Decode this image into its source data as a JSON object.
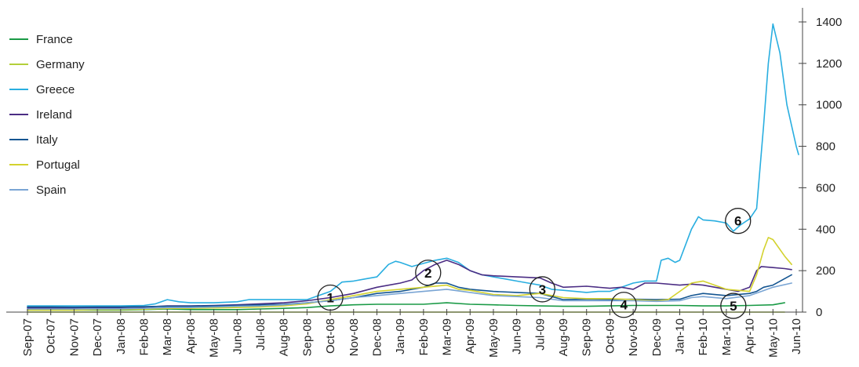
{
  "chart_data": {
    "type": "line",
    "title": "",
    "xlabel": "",
    "ylabel": "",
    "ylim": [
      0,
      1450
    ],
    "y_ticks": [
      0,
      200,
      400,
      600,
      800,
      1000,
      1200,
      1400
    ],
    "y_axis_side": "right",
    "grid": false,
    "legend_position": "top-left",
    "categories": [
      "Sep-07",
      "Oct-07",
      "Nov-07",
      "Dec-07",
      "Jan-08",
      "Feb-08",
      "Mar-08",
      "Apr-08",
      "May-08",
      "Jun-08",
      "Jul-08",
      "Aug-08",
      "Sep-08",
      "Oct-08",
      "Nov-08",
      "Dec-08",
      "Jan-09",
      "Feb-09",
      "Mar-09",
      "Apr-09",
      "May-09",
      "Jun-09",
      "Jul-09",
      "Aug-09",
      "Sep-09",
      "Oct-09",
      "Nov-09",
      "Dec-09",
      "Jan-10",
      "Feb-10",
      "Mar-10",
      "Apr-10",
      "May-10",
      "Jun-10"
    ],
    "series": [
      {
        "name": "France",
        "color": "#1a9a46",
        "points": [
          [
            0,
            10
          ],
          [
            1,
            10
          ],
          [
            2,
            10
          ],
          [
            3,
            10
          ],
          [
            4,
            10
          ],
          [
            5,
            12
          ],
          [
            6,
            15
          ],
          [
            7,
            12
          ],
          [
            8,
            12
          ],
          [
            9,
            12
          ],
          [
            10,
            15
          ],
          [
            11,
            18
          ],
          [
            12,
            22
          ],
          [
            13,
            30
          ],
          [
            14,
            35
          ],
          [
            15,
            38
          ],
          [
            16,
            38
          ],
          [
            17,
            38
          ],
          [
            18,
            45
          ],
          [
            19,
            38
          ],
          [
            20,
            35
          ],
          [
            21,
            32
          ],
          [
            22,
            30
          ],
          [
            23,
            28
          ],
          [
            24,
            28
          ],
          [
            25,
            30
          ],
          [
            26,
            32
          ],
          [
            27,
            32
          ],
          [
            28,
            32
          ],
          [
            29,
            30
          ],
          [
            30,
            30
          ],
          [
            31,
            32
          ],
          [
            32,
            35
          ],
          [
            32.5,
            45
          ]
        ]
      },
      {
        "name": "Germany",
        "color": "#b3cf3a",
        "points": [
          [
            0,
            0
          ],
          [
            1,
            0
          ],
          [
            2,
            0
          ],
          [
            3,
            0
          ],
          [
            4,
            0
          ],
          [
            5,
            0
          ],
          [
            6,
            0
          ],
          [
            7,
            0
          ],
          [
            8,
            0
          ],
          [
            9,
            0
          ],
          [
            10,
            0
          ],
          [
            11,
            0
          ],
          [
            12,
            0
          ],
          [
            13,
            0
          ],
          [
            14,
            0
          ],
          [
            15,
            0
          ],
          [
            16,
            0
          ],
          [
            17,
            0
          ],
          [
            18,
            0
          ],
          [
            19,
            0
          ],
          [
            20,
            0
          ],
          [
            21,
            0
          ],
          [
            22,
            0
          ],
          [
            23,
            0
          ],
          [
            24,
            0
          ],
          [
            25,
            0
          ],
          [
            26,
            0
          ],
          [
            27,
            0
          ],
          [
            28,
            0
          ],
          [
            29,
            0
          ],
          [
            30,
            0
          ],
          [
            31,
            0
          ],
          [
            32,
            0
          ],
          [
            32.5,
            0
          ]
        ]
      },
      {
        "name": "Greece",
        "color": "#29aee0",
        "points": [
          [
            0,
            30
          ],
          [
            1,
            30
          ],
          [
            2,
            30
          ],
          [
            3,
            30
          ],
          [
            4,
            30
          ],
          [
            5,
            32
          ],
          [
            5.5,
            40
          ],
          [
            6,
            60
          ],
          [
            6.5,
            50
          ],
          [
            7,
            45
          ],
          [
            8,
            45
          ],
          [
            9,
            50
          ],
          [
            9.5,
            60
          ],
          [
            10,
            60
          ],
          [
            11,
            60
          ],
          [
            12,
            60
          ],
          [
            12.5,
            80
          ],
          [
            13,
            100
          ],
          [
            13.5,
            145
          ],
          [
            14,
            150
          ],
          [
            14.5,
            160
          ],
          [
            15,
            170
          ],
          [
            15.5,
            230
          ],
          [
            15.8,
            245
          ],
          [
            16,
            240
          ],
          [
            16.5,
            220
          ],
          [
            17,
            235
          ],
          [
            17.5,
            250
          ],
          [
            18,
            260
          ],
          [
            18.5,
            240
          ],
          [
            19,
            200
          ],
          [
            19.5,
            180
          ],
          [
            20,
            170
          ],
          [
            20.5,
            160
          ],
          [
            21,
            150
          ],
          [
            21.5,
            140
          ],
          [
            22,
            130
          ],
          [
            22.5,
            110
          ],
          [
            23,
            105
          ],
          [
            23.5,
            100
          ],
          [
            24,
            95
          ],
          [
            24.5,
            100
          ],
          [
            25,
            100
          ],
          [
            25.5,
            120
          ],
          [
            26,
            140
          ],
          [
            26.5,
            150
          ],
          [
            27,
            150
          ],
          [
            27.2,
            250
          ],
          [
            27.5,
            260
          ],
          [
            27.8,
            240
          ],
          [
            28,
            250
          ],
          [
            28.5,
            400
          ],
          [
            28.8,
            460
          ],
          [
            29,
            445
          ],
          [
            29.5,
            440
          ],
          [
            30,
            430
          ],
          [
            30.3,
            390
          ],
          [
            30.6,
            420
          ],
          [
            31,
            450
          ],
          [
            31.3,
            500
          ],
          [
            31.6,
            900
          ],
          [
            31.8,
            1200
          ],
          [
            32,
            1390
          ],
          [
            32.3,
            1250
          ],
          [
            32.6,
            1000
          ],
          [
            33,
            800
          ],
          [
            33.1,
            760
          ]
        ]
      },
      {
        "name": "Ireland",
        "color": "#4b2d84",
        "points": [
          [
            0,
            20
          ],
          [
            1,
            20
          ],
          [
            2,
            20
          ],
          [
            3,
            22
          ],
          [
            4,
            22
          ],
          [
            5,
            24
          ],
          [
            6,
            30
          ],
          [
            7,
            30
          ],
          [
            8,
            32
          ],
          [
            9,
            35
          ],
          [
            10,
            40
          ],
          [
            11,
            45
          ],
          [
            12,
            55
          ],
          [
            13,
            70
          ],
          [
            14,
            90
          ],
          [
            15,
            120
          ],
          [
            16,
            140
          ],
          [
            16.5,
            155
          ],
          [
            17,
            200
          ],
          [
            17.5,
            230
          ],
          [
            18,
            250
          ],
          [
            18.5,
            230
          ],
          [
            19,
            200
          ],
          [
            19.5,
            180
          ],
          [
            20,
            175
          ],
          [
            21,
            170
          ],
          [
            22,
            165
          ],
          [
            22.5,
            140
          ],
          [
            23,
            120
          ],
          [
            24,
            125
          ],
          [
            25,
            115
          ],
          [
            25.5,
            120
          ],
          [
            26,
            110
          ],
          [
            26.5,
            140
          ],
          [
            27,
            140
          ],
          [
            28,
            130
          ],
          [
            28.5,
            135
          ],
          [
            29,
            130
          ],
          [
            30,
            110
          ],
          [
            30.5,
            100
          ],
          [
            31,
            120
          ],
          [
            31.3,
            200
          ],
          [
            31.5,
            220
          ],
          [
            32,
            215
          ],
          [
            32.5,
            210
          ],
          [
            32.8,
            205
          ]
        ]
      },
      {
        "name": "Italy",
        "color": "#145591",
        "points": [
          [
            0,
            25
          ],
          [
            1,
            25
          ],
          [
            2,
            24
          ],
          [
            3,
            25
          ],
          [
            4,
            25
          ],
          [
            5,
            26
          ],
          [
            6,
            28
          ],
          [
            7,
            28
          ],
          [
            8,
            30
          ],
          [
            9,
            32
          ],
          [
            10,
            35
          ],
          [
            11,
            38
          ],
          [
            12,
            45
          ],
          [
            13,
            55
          ],
          [
            14,
            70
          ],
          [
            15,
            90
          ],
          [
            16,
            100
          ],
          [
            17,
            120
          ],
          [
            17.5,
            140
          ],
          [
            18,
            140
          ],
          [
            18.5,
            120
          ],
          [
            19,
            110
          ],
          [
            20,
            100
          ],
          [
            21,
            95
          ],
          [
            22,
            90
          ],
          [
            23,
            60
          ],
          [
            24,
            62
          ],
          [
            25,
            60
          ],
          [
            26,
            62
          ],
          [
            27,
            60
          ],
          [
            28,
            62
          ],
          [
            28.5,
            80
          ],
          [
            29,
            90
          ],
          [
            30,
            80
          ],
          [
            31,
            90
          ],
          [
            31.3,
            100
          ],
          [
            31.6,
            120
          ],
          [
            32,
            130
          ],
          [
            32.8,
            180
          ]
        ]
      },
      {
        "name": "Portugal",
        "color": "#d3d22e",
        "points": [
          [
            0,
            10
          ],
          [
            1,
            10
          ],
          [
            2,
            10
          ],
          [
            3,
            12
          ],
          [
            4,
            12
          ],
          [
            5,
            14
          ],
          [
            6,
            18
          ],
          [
            7,
            18
          ],
          [
            8,
            20
          ],
          [
            9,
            22
          ],
          [
            10,
            25
          ],
          [
            11,
            30
          ],
          [
            12,
            40
          ],
          [
            13,
            60
          ],
          [
            14,
            80
          ],
          [
            15,
            100
          ],
          [
            16,
            110
          ],
          [
            17,
            120
          ],
          [
            18,
            130
          ],
          [
            18.5,
            110
          ],
          [
            19,
            105
          ],
          [
            20,
            85
          ],
          [
            21,
            80
          ],
          [
            22,
            90
          ],
          [
            23,
            70
          ],
          [
            24,
            65
          ],
          [
            25,
            65
          ],
          [
            26,
            60
          ],
          [
            27,
            55
          ],
          [
            27.5,
            60
          ],
          [
            28,
            100
          ],
          [
            28.5,
            140
          ],
          [
            29,
            150
          ],
          [
            30,
            110
          ],
          [
            31,
            100
          ],
          [
            31.3,
            180
          ],
          [
            31.6,
            300
          ],
          [
            31.8,
            360
          ],
          [
            32,
            350
          ],
          [
            32.5,
            270
          ],
          [
            32.8,
            230
          ]
        ]
      },
      {
        "name": "Spain",
        "color": "#7aa5d4",
        "points": [
          [
            0,
            15
          ],
          [
            1,
            15
          ],
          [
            2,
            15
          ],
          [
            3,
            16
          ],
          [
            4,
            16
          ],
          [
            5,
            18
          ],
          [
            6,
            22
          ],
          [
            7,
            22
          ],
          [
            8,
            25
          ],
          [
            9,
            28
          ],
          [
            10,
            30
          ],
          [
            11,
            35
          ],
          [
            12,
            45
          ],
          [
            13,
            55
          ],
          [
            14,
            70
          ],
          [
            15,
            80
          ],
          [
            16,
            90
          ],
          [
            17,
            100
          ],
          [
            18,
            110
          ],
          [
            19,
            95
          ],
          [
            20,
            80
          ],
          [
            21,
            75
          ],
          [
            22,
            70
          ],
          [
            23,
            55
          ],
          [
            24,
            55
          ],
          [
            25,
            55
          ],
          [
            26,
            55
          ],
          [
            27,
            52
          ],
          [
            28,
            55
          ],
          [
            28.5,
            70
          ],
          [
            29,
            75
          ],
          [
            30,
            65
          ],
          [
            31,
            80
          ],
          [
            31.5,
            100
          ],
          [
            32,
            120
          ],
          [
            32.8,
            140
          ]
        ]
      }
    ],
    "annotations": [
      {
        "label": "1",
        "x": 13,
        "y": 70
      },
      {
        "label": "2",
        "x": 17.2,
        "y": 190
      },
      {
        "label": "3",
        "x": 22.1,
        "y": 110
      },
      {
        "label": "4",
        "x": 25.6,
        "y": 35
      },
      {
        "label": "5",
        "x": 30.3,
        "y": 30
      },
      {
        "label": "6",
        "x": 30.5,
        "y": 440
      }
    ]
  }
}
